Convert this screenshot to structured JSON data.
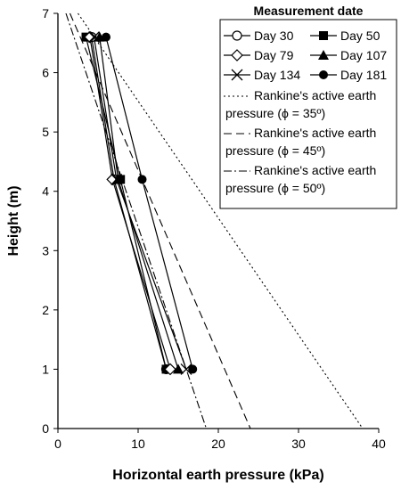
{
  "chart_data": {
    "type": "line",
    "title": "",
    "xlabel": "Horizontal earth pressure (kPa)",
    "ylabel": "Height (m)",
    "xlim": [
      0,
      40
    ],
    "ylim": [
      0,
      7
    ],
    "xticks": [
      "0",
      "10",
      "20",
      "30",
      "40"
    ],
    "yticks": [
      "0",
      "1",
      "2",
      "3",
      "4",
      "5",
      "6",
      "7"
    ],
    "grid": false,
    "legend": {
      "title": "Measurement date",
      "placement": "top-right"
    },
    "series": [
      {
        "name": "Day 30",
        "marker": "circle-open",
        "points": [
          [
            4.2,
            6.6
          ],
          [
            7.0,
            4.2
          ],
          [
            13.5,
            1.0
          ]
        ]
      },
      {
        "name": "Day 50",
        "marker": "square",
        "points": [
          [
            3.5,
            6.6
          ],
          [
            7.8,
            4.2
          ],
          [
            13.5,
            1.0
          ]
        ]
      },
      {
        "name": "Day 79",
        "marker": "diamond-open",
        "points": [
          [
            4.0,
            6.6
          ],
          [
            6.8,
            4.2
          ],
          [
            14.0,
            1.0
          ]
        ]
      },
      {
        "name": "Day 107",
        "marker": "triangle",
        "points": [
          [
            5.2,
            6.6
          ],
          [
            7.5,
            4.2
          ],
          [
            15.0,
            1.0
          ]
        ]
      },
      {
        "name": "Day 134",
        "marker": "x",
        "points": [
          [
            4.5,
            6.6
          ],
          [
            7.3,
            4.2
          ],
          [
            16.0,
            1.0
          ]
        ]
      },
      {
        "name": "Day 181",
        "marker": "circle",
        "points": [
          [
            6.0,
            6.6
          ],
          [
            10.5,
            4.2
          ],
          [
            16.8,
            1.0
          ]
        ]
      },
      {
        "name": "Rankine's active earth pressure (ϕ = 35º)",
        "style": "dotted",
        "points": [
          [
            2.5,
            7.0
          ],
          [
            38.0,
            0.0
          ]
        ]
      },
      {
        "name": "Rankine's active earth pressure (ϕ = 45º)",
        "style": "dashed",
        "points": [
          [
            1.5,
            7.0
          ],
          [
            24.0,
            0.0
          ]
        ]
      },
      {
        "name": "Rankine's active earth pressure (ϕ = 50º)",
        "style": "dashdot",
        "points": [
          [
            1.0,
            7.0
          ],
          [
            18.5,
            0.0
          ]
        ]
      }
    ]
  }
}
